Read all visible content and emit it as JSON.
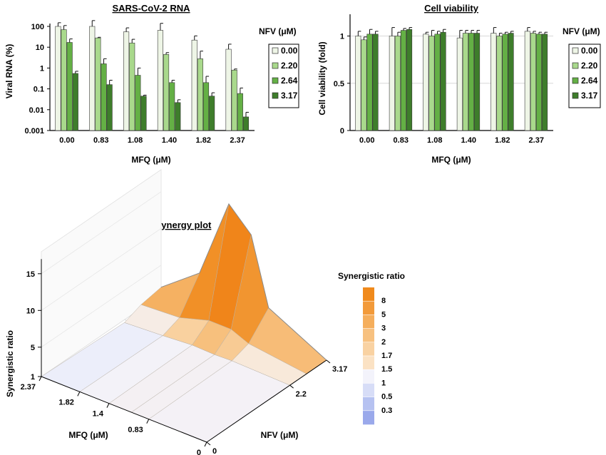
{
  "chart_data": [
    {
      "type": "bar",
      "title": "SARS-CoV-2 RNA",
      "xlabel": "MFQ (μM)",
      "ylabel": "Viral RNA (%)",
      "yscale": "log",
      "ylim": [
        0.001,
        100
      ],
      "yticks": [
        "100",
        "10",
        "1",
        "0.1",
        "0.01",
        "0.001"
      ],
      "categories": [
        "0.00",
        "0.83",
        "1.08",
        "1.40",
        "1.82",
        "2.37"
      ],
      "legend_title": "NFV (μM)",
      "legend_position": "right",
      "series": [
        {
          "name": "0.00",
          "color": "#eef5e6",
          "values": [
            100,
            100,
            55,
            65,
            22,
            8
          ],
          "errors": [
            150,
            190,
            85,
            140,
            35,
            14
          ]
        },
        {
          "name": "2.20",
          "color": "#a9d98c",
          "values": [
            70,
            28,
            16,
            4.5,
            2.8,
            0.8
          ],
          "errors": [
            110,
            30,
            24,
            5.5,
            6.5,
            0.9
          ]
        },
        {
          "name": "2.64",
          "color": "#64b045",
          "values": [
            17,
            1.6,
            0.45,
            0.2,
            0.2,
            0.06
          ],
          "errors": [
            25,
            2.8,
            1.0,
            0.26,
            0.4,
            0.11
          ]
        },
        {
          "name": "3.17",
          "color": "#3e7d2b",
          "values": [
            0.55,
            0.16,
            0.045,
            0.022,
            0.045,
            0.0045
          ],
          "errors": [
            0.7,
            0.26,
            0.05,
            0.03,
            0.065,
            0.0075
          ]
        }
      ]
    },
    {
      "type": "bar",
      "title": "Cell viability",
      "xlabel": "MFQ (μM)",
      "ylabel": "Cell viability (fold)",
      "ylim": [
        0,
        1.2
      ],
      "yticks": [
        "1",
        "0.5",
        "0"
      ],
      "categories": [
        "0.00",
        "0.83",
        "1.08",
        "1.40",
        "1.82",
        "2.37"
      ],
      "legend_title": "NFV (μM)",
      "legend_position": "right",
      "grid": true,
      "series": [
        {
          "name": "0.00",
          "color": "#eef5e6",
          "values": [
            1.0,
            1.0,
            1.02,
            0.98,
            1.03,
            1.05
          ],
          "errors": [
            1.05,
            1.09,
            1.04,
            1.06,
            1.09,
            1.09
          ]
        },
        {
          "name": "2.20",
          "color": "#a9d98c",
          "values": [
            0.96,
            1.0,
            1.0,
            1.03,
            1.0,
            1.03
          ],
          "errors": [
            0.99,
            1.04,
            1.06,
            1.06,
            1.03,
            1.05
          ]
        },
        {
          "name": "2.64",
          "color": "#64b045",
          "values": [
            1.02,
            1.06,
            1.02,
            1.03,
            1.02,
            1.02
          ],
          "errors": [
            1.07,
            1.08,
            1.05,
            1.06,
            1.04,
            1.04
          ]
        },
        {
          "name": "3.17",
          "color": "#3e7d2b",
          "values": [
            1.02,
            1.07,
            1.04,
            1.03,
            1.03,
            1.02
          ],
          "errors": [
            1.05,
            1.09,
            1.07,
            1.06,
            1.05,
            1.04
          ]
        }
      ]
    },
    {
      "type": "surface",
      "title": "Synergy plot",
      "xlabel": "NFV (μM)",
      "ylabel": "MFQ (μM)",
      "zlabel": "Synergistic ratio",
      "x_ticks": [
        "0",
        "2.2",
        "3.17"
      ],
      "y_ticks": [
        "0",
        "0.83",
        "1.4",
        "1.82",
        "2.37"
      ],
      "z_ticks": [
        "1",
        "5",
        "10",
        "15"
      ],
      "nfv": [
        0,
        2.2,
        2.64,
        3.17
      ],
      "mfq": [
        0,
        0.83,
        1.08,
        1.4,
        1.82,
        2.37
      ],
      "z": [
        [
          1,
          1,
          1,
          1
        ],
        [
          1,
          1.2,
          2,
          5
        ],
        [
          1,
          1.1,
          3,
          14
        ],
        [
          1,
          1.2,
          3,
          17
        ],
        [
          1,
          0.9,
          1.8,
          6
        ],
        [
          1,
          0.6,
          1.5,
          2
        ]
      ],
      "colorbar_title": "Synergistic ratio",
      "colorbar_labels": [
        "8",
        "5",
        "3",
        "2",
        "1.7",
        "1.5",
        "1",
        "0.5",
        "0.3"
      ],
      "colorbar_colors": [
        "#f08a1c",
        "#f29a3a",
        "#f5ae5c",
        "#f7c180",
        "#f9d2a2",
        "#fbe2c4",
        "#f3f3fb",
        "#d7ddf7",
        "#b6c2f1",
        "#9aa9eb"
      ]
    }
  ]
}
